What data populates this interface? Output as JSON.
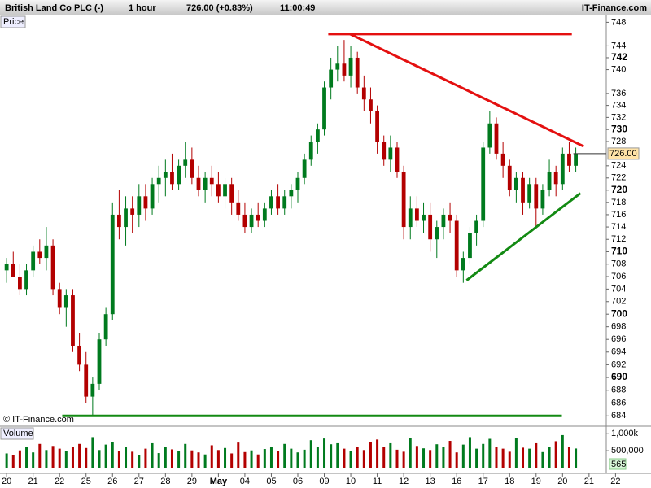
{
  "chart_data": {
    "type": "candlestick",
    "title": "British Land Co PLC (-)",
    "interval": "1 hour",
    "last_quote": "726.00 (+0.83%)",
    "time": "11:00:49",
    "source": "IT-Finance.com",
    "copyright": "© IT-Finance.com",
    "price_label": "Price",
    "volume_label": "Volume",
    "log_scale": true,
    "up_color": "#007a1e",
    "down_color": "#b30000",
    "xlim": [
      -1,
      90.6
    ],
    "xticks": [
      {
        "value": 0,
        "label": "20"
      },
      {
        "value": 4,
        "label": "21"
      },
      {
        "value": 8,
        "label": "22"
      },
      {
        "value": 12,
        "label": "25"
      },
      {
        "value": 16,
        "label": "26"
      },
      {
        "value": 20,
        "label": "27"
      },
      {
        "value": 24,
        "label": "28"
      },
      {
        "value": 28,
        "label": "29"
      },
      {
        "value": 32,
        "label": "May"
      },
      {
        "value": 36,
        "label": "04"
      },
      {
        "value": 40,
        "label": "05"
      },
      {
        "value": 44,
        "label": "06"
      },
      {
        "value": 48,
        "label": "09"
      },
      {
        "value": 52,
        "label": "10"
      },
      {
        "value": 56,
        "label": "11"
      },
      {
        "value": 60,
        "label": "12"
      },
      {
        "value": 64,
        "label": "13"
      },
      {
        "value": 68,
        "label": "16"
      },
      {
        "value": 72,
        "label": "17"
      },
      {
        "value": 76,
        "label": "18"
      },
      {
        "value": 80,
        "label": "19"
      },
      {
        "value": 84,
        "label": "20"
      },
      {
        "value": 88,
        "label": "21"
      },
      {
        "value": 92,
        "label": "22"
      }
    ],
    "ylim": [
      682.9,
      749.3
    ],
    "yticks": [
      748,
      744,
      742,
      740,
      736,
      734,
      732,
      730,
      728,
      724,
      722,
      720,
      718,
      716,
      714,
      712,
      710,
      708,
      706,
      704,
      702,
      700,
      698,
      696,
      694,
      692,
      690,
      688,
      686,
      684
    ],
    "major_yticks": [
      742,
      730,
      720,
      710,
      700,
      690
    ],
    "last_price": {
      "value": 726,
      "label": "726.00"
    },
    "ohlc": [
      [
        707,
        709,
        705,
        708
      ],
      [
        708,
        710,
        706,
        706
      ],
      [
        706,
        708,
        703,
        704
      ],
      [
        704,
        708,
        703,
        707
      ],
      [
        707,
        711,
        706,
        710
      ],
      [
        710,
        712,
        708,
        709
      ],
      [
        709,
        714,
        707,
        711
      ],
      [
        711,
        712,
        703,
        704
      ],
      [
        704,
        705,
        700,
        701
      ],
      [
        701,
        704,
        698,
        703
      ],
      [
        703,
        704,
        694,
        695
      ],
      [
        695,
        697,
        691,
        692
      ],
      [
        692,
        694,
        686,
        687
      ],
      [
        687,
        690,
        684,
        689
      ],
      [
        689,
        697,
        688,
        696
      ],
      [
        696,
        701,
        695,
        700
      ],
      [
        700,
        718,
        699,
        716
      ],
      [
        716,
        720,
        712,
        714
      ],
      [
        714,
        719,
        711,
        717
      ],
      [
        717,
        719,
        713,
        716
      ],
      [
        716,
        721,
        714,
        719
      ],
      [
        719,
        721,
        715,
        717
      ],
      [
        717,
        722,
        716,
        721
      ],
      [
        721,
        724,
        718,
        722
      ],
      [
        722,
        725,
        719,
        723
      ],
      [
        723,
        726,
        720,
        721
      ],
      [
        721,
        725,
        720,
        724
      ],
      [
        724,
        728,
        722,
        725
      ],
      [
        725,
        727,
        721,
        722
      ],
      [
        722,
        724,
        719,
        720
      ],
      [
        720,
        723,
        718,
        722
      ],
      [
        722,
        724,
        719,
        721
      ],
      [
        721,
        723,
        718,
        719
      ],
      [
        719,
        722,
        717,
        721
      ],
      [
        721,
        722,
        716,
        718
      ],
      [
        718,
        720,
        715,
        716
      ],
      [
        716,
        718,
        713,
        714
      ],
      [
        714,
        717,
        713,
        716
      ],
      [
        716,
        718,
        714,
        715
      ],
      [
        715,
        718,
        714,
        717
      ],
      [
        717,
        720,
        716,
        719
      ],
      [
        719,
        721,
        716,
        717
      ],
      [
        717,
        720,
        716,
        719
      ],
      [
        719,
        721,
        717,
        720
      ],
      [
        720,
        723,
        718,
        722
      ],
      [
        722,
        726,
        721,
        725
      ],
      [
        725,
        729,
        724,
        728
      ],
      [
        728,
        731,
        726,
        730
      ],
      [
        730,
        738,
        729,
        737
      ],
      [
        737,
        742,
        735,
        740
      ],
      [
        740,
        744,
        738,
        741
      ],
      [
        741,
        745,
        738,
        739
      ],
      [
        739,
        744,
        737,
        742
      ],
      [
        742,
        743,
        736,
        737
      ],
      [
        737,
        739,
        733,
        735
      ],
      [
        735,
        737,
        731,
        733
      ],
      [
        733,
        734,
        726,
        728
      ],
      [
        728,
        729,
        724,
        725
      ],
      [
        725,
        729,
        723,
        727
      ],
      [
        727,
        728,
        722,
        723
      ],
      [
        723,
        724,
        712,
        714
      ],
      [
        714,
        719,
        712,
        717
      ],
      [
        717,
        719,
        714,
        715
      ],
      [
        715,
        718,
        713,
        716
      ],
      [
        716,
        718,
        710,
        712
      ],
      [
        712,
        715,
        709,
        714
      ],
      [
        714,
        717,
        712,
        716
      ],
      [
        716,
        718,
        713,
        715
      ],
      [
        715,
        716,
        706,
        707
      ],
      [
        707,
        710,
        705,
        709
      ],
      [
        709,
        714,
        708,
        713
      ],
      [
        713,
        716,
        711,
        715
      ],
      [
        715,
        728,
        714,
        727
      ],
      [
        727,
        733,
        726,
        731
      ],
      [
        731,
        732,
        725,
        726
      ],
      [
        726,
        728,
        722,
        724
      ],
      [
        724,
        725,
        719,
        720
      ],
      [
        720,
        723,
        718,
        722
      ],
      [
        722,
        723,
        716,
        718
      ],
      [
        718,
        722,
        717,
        721
      ],
      [
        721,
        722,
        714,
        717
      ],
      [
        717,
        721,
        716,
        720
      ],
      [
        720,
        725,
        719,
        723
      ],
      [
        723,
        724,
        719,
        721
      ],
      [
        721,
        727,
        720,
        726
      ],
      [
        726,
        728,
        723,
        724
      ],
      [
        724,
        727,
        723,
        726
      ]
    ],
    "lines": [
      {
        "color": "#e41010",
        "points": [
          [
            48.6,
            746
          ],
          [
            85.4,
            746
          ]
        ]
      },
      {
        "color": "#e41010",
        "points": [
          [
            51.9,
            746
          ],
          [
            87.2,
            727.2
          ]
        ]
      },
      {
        "color": "#138a13",
        "points": [
          [
            8.4,
            684
          ],
          [
            83.9,
            684
          ]
        ]
      },
      {
        "color": "#138a13",
        "points": [
          [
            69.5,
            705.4
          ],
          [
            86.7,
            719.5
          ]
        ]
      }
    ],
    "volume": {
      "values": [
        420000,
        380000,
        510000,
        600000,
        450000,
        700000,
        520000,
        640000,
        560000,
        480000,
        620000,
        700000,
        580000,
        900000,
        520000,
        680000,
        750000,
        500000,
        610000,
        470000,
        380000,
        560000,
        720000,
        430000,
        610000,
        540000,
        480000,
        700000,
        510000,
        450000,
        390000,
        660000,
        520000,
        580000,
        420000,
        740000,
        460000,
        510000,
        390000,
        550000,
        620000,
        480000,
        700000,
        560000,
        450000,
        530000,
        810000,
        620000,
        860000,
        690000,
        720000,
        560000,
        480000,
        610000,
        520000,
        760000,
        830000,
        600000,
        720000,
        530000,
        470000,
        880000,
        640000,
        570000,
        520000,
        690000,
        610000,
        790000,
        450000,
        680000,
        900000,
        560000,
        700000,
        850000,
        620000,
        560000,
        470000,
        880000,
        590000,
        560000,
        720000,
        460000,
        610000,
        780000,
        960000,
        620000,
        565000
      ],
      "ylim": [
        0,
        1150000
      ],
      "yticks": [
        {
          "value": 1000000,
          "label": "1,000k"
        },
        {
          "value": 500000,
          "label": "500,000"
        }
      ],
      "last_box": "565"
    }
  }
}
